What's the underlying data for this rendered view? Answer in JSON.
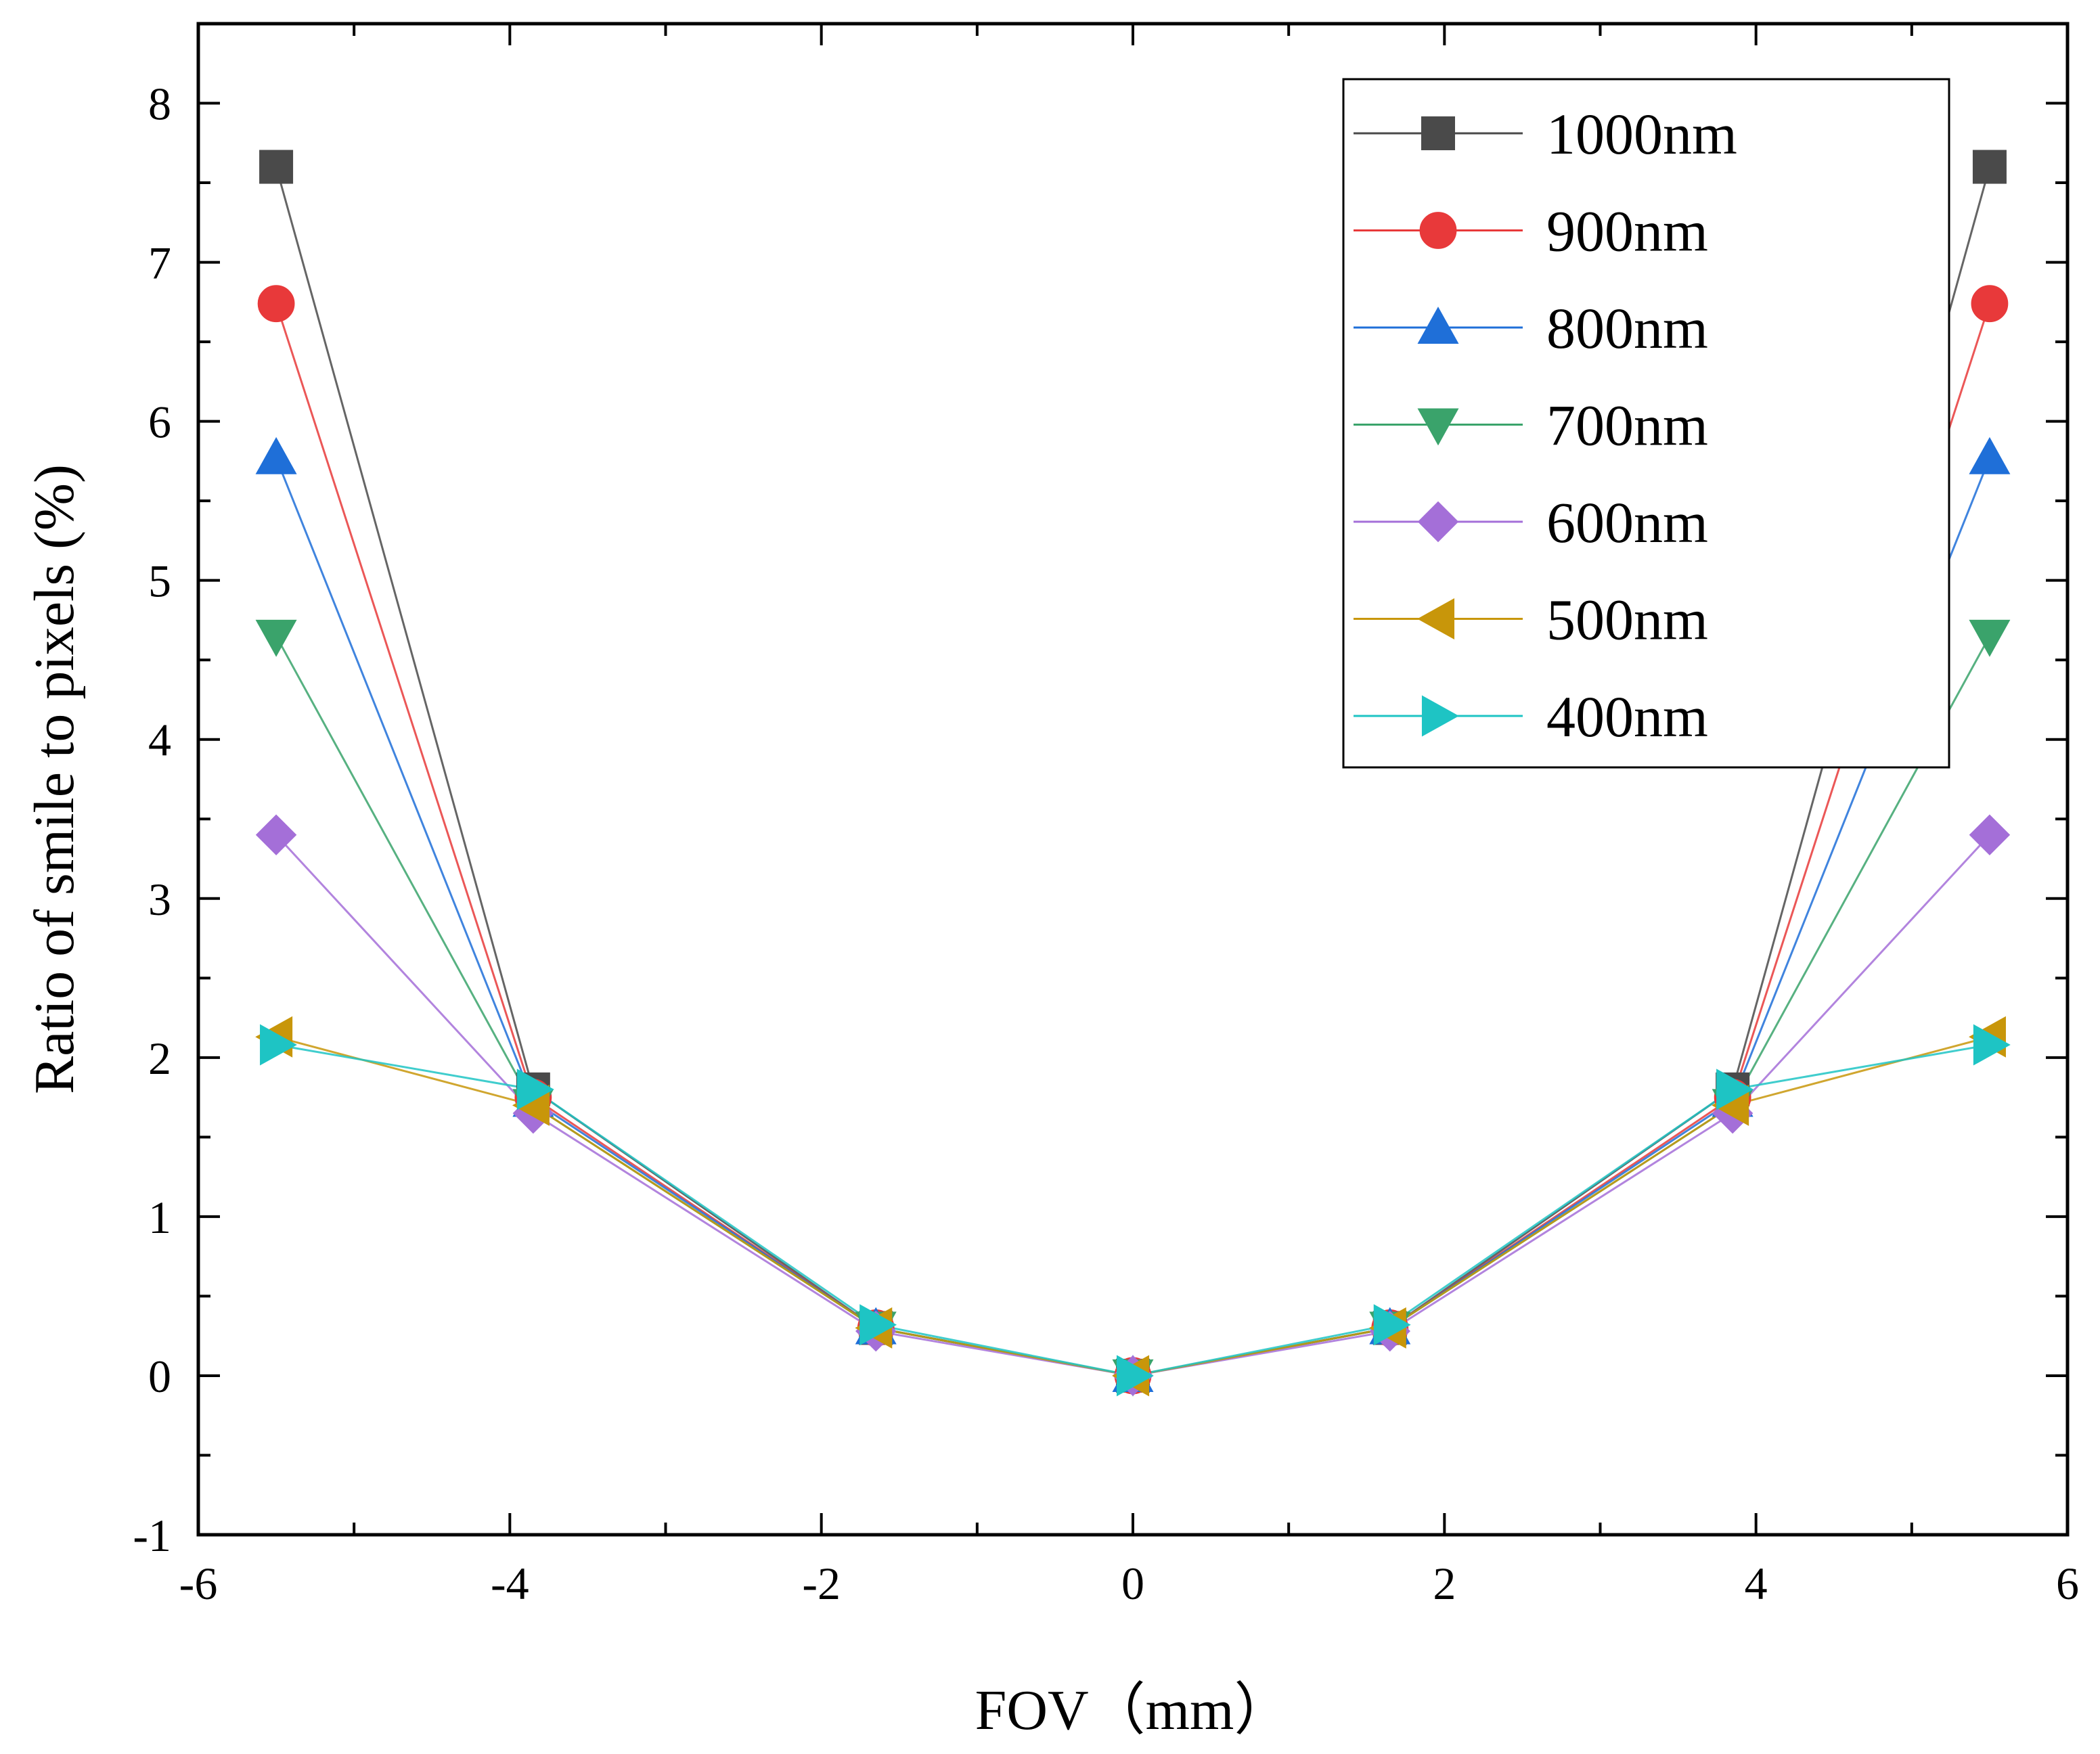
{
  "chart_data": {
    "type": "line",
    "title": "",
    "xlabel": "FOV（mm）",
    "ylabel": "Ratio of  smile to pixels (%)",
    "xlim": [
      -6,
      6
    ],
    "ylim": [
      -1,
      8.5
    ],
    "x_ticks": [
      -6,
      -4,
      -2,
      0,
      2,
      4,
      6
    ],
    "y_ticks": [
      -1,
      0,
      1,
      2,
      3,
      4,
      5,
      6,
      7,
      8
    ],
    "x_tick_labels": [
      "-6",
      "-4",
      "-2",
      "0",
      "2",
      "4",
      "6"
    ],
    "y_tick_labels": [
      "-1",
      "0",
      "1",
      "2",
      "3",
      "4",
      "5",
      "6",
      "7",
      "8"
    ],
    "grid": false,
    "legend_position": "top-right",
    "x": [
      -5.5,
      -3.85,
      -1.65,
      0,
      1.65,
      3.85,
      5.5
    ],
    "series": [
      {
        "name": "1000nm",
        "marker": "square",
        "color": "#4a4a4a",
        "values": [
          7.6,
          1.8,
          0.3,
          0,
          0.3,
          1.8,
          7.6
        ]
      },
      {
        "name": "900nm",
        "marker": "circle",
        "color": "#e8393a",
        "values": [
          6.74,
          1.75,
          0.3,
          0,
          0.3,
          1.75,
          6.74
        ]
      },
      {
        "name": "800nm",
        "marker": "triangle-up",
        "color": "#1f6fd8",
        "values": [
          5.77,
          1.73,
          0.3,
          0,
          0.3,
          1.73,
          5.77
        ]
      },
      {
        "name": "700nm",
        "marker": "triangle-down",
        "color": "#3aa36b",
        "values": [
          4.65,
          1.7,
          0.3,
          0,
          0.3,
          1.7,
          4.65
        ]
      },
      {
        "name": "600nm",
        "marker": "diamond",
        "color": "#a46fd8",
        "values": [
          3.4,
          1.65,
          0.28,
          0,
          0.28,
          1.65,
          3.4
        ]
      },
      {
        "name": "500nm",
        "marker": "triangle-left",
        "color": "#c8960a",
        "values": [
          2.13,
          1.7,
          0.3,
          0,
          0.3,
          1.7,
          2.13
        ]
      },
      {
        "name": "400nm",
        "marker": "triangle-right",
        "color": "#1ec4c4",
        "values": [
          2.08,
          1.8,
          0.32,
          0,
          0.32,
          1.8,
          2.08
        ]
      }
    ]
  }
}
